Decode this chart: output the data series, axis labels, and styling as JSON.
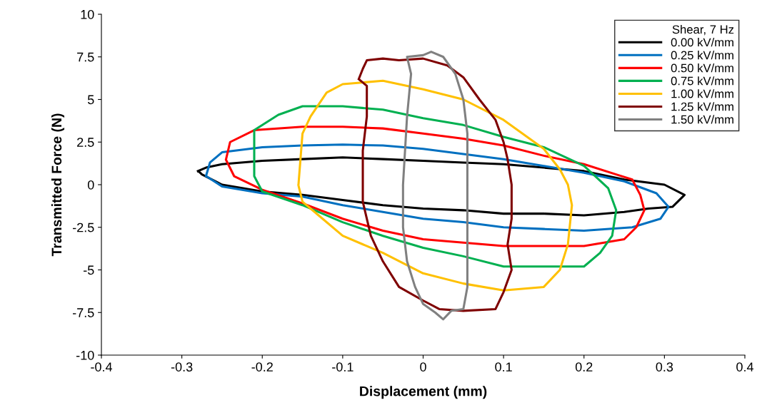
{
  "chart_data": {
    "type": "line",
    "xlabel": "Displacement (mm)",
    "ylabel": "Transmitted Force (N)",
    "legend_title": "Shear, 7 Hz",
    "legend": "top right",
    "grid": false,
    "marker": "none",
    "line_style": "solid",
    "xlim": [
      -0.4,
      0.4
    ],
    "xticks": [
      -0.4,
      -0.3,
      -0.2,
      -0.1,
      {
        "value": 0,
        "label": "0"
      },
      0.1,
      0.2,
      0.3,
      0.4
    ],
    "ylim": [
      -10,
      10
    ],
    "yticks": [
      -10,
      -7.5,
      -5,
      -2.5,
      0,
      2.5,
      5,
      7.5,
      10
    ],
    "series": [
      {
        "name": "0.00 kV/mm",
        "color": "#000000",
        "x": [
          -0.28,
          -0.27,
          -0.25,
          -0.2,
          -0.15,
          -0.1,
          -0.05,
          0,
          0.05,
          0.1,
          0.15,
          0.2,
          0.25,
          0.3,
          0.325,
          0.31,
          0.28,
          0.25,
          0.2,
          0.15,
          0.1,
          0.05,
          0,
          -0.05,
          -0.1,
          -0.15,
          -0.2,
          -0.25,
          -0.275,
          -0.279
        ],
        "values": [
          0.8,
          1.0,
          1.2,
          1.4,
          1.5,
          1.6,
          1.5,
          1.4,
          1.3,
          1.2,
          1.0,
          0.8,
          0.3,
          0,
          -0.6,
          -1.3,
          -1.4,
          -1.6,
          -1.8,
          -1.7,
          -1.7,
          -1.5,
          -1.4,
          -1.2,
          -0.9,
          -0.6,
          -0.4,
          0,
          0.6,
          0.78
        ]
      },
      {
        "name": "0.25 kV/mm",
        "color": "#0070c0",
        "x": [
          -0.27,
          -0.265,
          -0.25,
          -0.2,
          -0.15,
          -0.1,
          -0.05,
          0,
          0.05,
          0.1,
          0.15,
          0.2,
          0.25,
          0.29,
          0.305,
          0.295,
          0.26,
          0.2,
          0.15,
          0.1,
          0.05,
          0,
          -0.05,
          -0.1,
          -0.15,
          -0.2,
          -0.25,
          -0.269
        ],
        "values": [
          0.5,
          1.3,
          1.9,
          2.2,
          2.3,
          2.35,
          2.3,
          2.1,
          1.8,
          1.5,
          1.1,
          0.7,
          0.2,
          -0.5,
          -1.3,
          -2.0,
          -2.5,
          -2.7,
          -2.6,
          -2.5,
          -2.2,
          -2.0,
          -1.6,
          -1.2,
          -0.7,
          -0.5,
          -0.1,
          0.48
        ]
      },
      {
        "name": "0.50 kV/mm",
        "color": "#ff0000",
        "x": [
          -0.245,
          -0.24,
          -0.21,
          -0.15,
          -0.1,
          -0.05,
          0,
          0.05,
          0.1,
          0.15,
          0.2,
          0.24,
          0.26,
          0.27,
          0.275,
          0.265,
          0.25,
          0.2,
          0.15,
          0.1,
          0.05,
          0,
          -0.05,
          -0.1,
          -0.15,
          -0.2,
          -0.235,
          -0.245
        ],
        "values": [
          1.5,
          2.5,
          3.2,
          3.4,
          3.4,
          3.3,
          3.0,
          2.7,
          2.3,
          1.7,
          1.2,
          0.6,
          0.3,
          -0.6,
          -1.5,
          -2.5,
          -3.2,
          -3.6,
          -3.6,
          -3.6,
          -3.4,
          -3.2,
          -2.7,
          -2.0,
          -1.1,
          -0.3,
          0.5,
          1.45
        ]
      },
      {
        "name": "0.75 kV/mm",
        "color": "#00b050",
        "x": [
          -0.21,
          -0.21,
          -0.18,
          -0.15,
          -0.1,
          -0.05,
          0,
          0.05,
          0.1,
          0.15,
          0.2,
          0.23,
          0.24,
          0.235,
          0.22,
          0.2,
          0.15,
          0.1,
          0.05,
          0,
          -0.05,
          -0.1,
          -0.15,
          -0.2,
          -0.21,
          -0.21
        ],
        "values": [
          2.0,
          3.2,
          4.1,
          4.6,
          4.6,
          4.4,
          3.9,
          3.5,
          2.8,
          2.2,
          1.1,
          -0.2,
          -1.5,
          -3.0,
          -4.0,
          -4.8,
          -4.8,
          -4.8,
          -4.2,
          -3.7,
          -3.0,
          -2.2,
          -1.2,
          -0.4,
          0.5,
          1.95
        ]
      },
      {
        "name": "1.00 kV/mm",
        "color": "#ffc000",
        "x": [
          -0.155,
          -0.15,
          -0.14,
          -0.12,
          -0.1,
          -0.05,
          0,
          0.05,
          0.1,
          0.15,
          0.17,
          0.18,
          0.185,
          0.18,
          0.17,
          0.15,
          0.1,
          0.05,
          0,
          -0.05,
          -0.1,
          -0.13,
          -0.15,
          -0.155
        ],
        "values": [
          0,
          3.0,
          4.0,
          5.4,
          5.9,
          6.1,
          5.6,
          5.0,
          3.8,
          2.1,
          0.9,
          0,
          -1.2,
          -3.5,
          -5.0,
          -6.0,
          -6.2,
          -5.8,
          -5.2,
          -4.0,
          -3.0,
          -1.8,
          -1.0,
          -0.05
        ]
      },
      {
        "name": "1.25 kV/mm",
        "color": "#7f0000",
        "x": [
          -0.08,
          -0.075,
          -0.07,
          -0.05,
          -0.03,
          0,
          0.03,
          0.05,
          0.07,
          0.09,
          0.1,
          0.105,
          0.11,
          0.11,
          0.105,
          0.11,
          0.1,
          0.09,
          0.05,
          0.02,
          0,
          -0.03,
          -0.05,
          -0.065,
          -0.075,
          -0.075,
          -0.07,
          -0.07,
          -0.079
        ],
        "values": [
          6.2,
          6.8,
          7.3,
          7.4,
          7.3,
          7.4,
          7.0,
          6.3,
          5.0,
          3.8,
          2.5,
          1.5,
          0,
          -2.0,
          -3.5,
          -5.0,
          -6.3,
          -7.3,
          -7.4,
          -7.3,
          -6.8,
          -6.0,
          -4.5,
          -3.0,
          -1.0,
          2.0,
          4.0,
          5.8,
          6.15
        ]
      },
      {
        "name": "1.50 kV/mm",
        "color": "#808080",
        "x": [
          -0.025,
          -0.02,
          -0.015,
          -0.02,
          0,
          0.01,
          0.025,
          0.04,
          0.05,
          0.055,
          0.055,
          0.055,
          0.055,
          0.05,
          0.035,
          0.025,
          0.015,
          0,
          -0.01,
          -0.02,
          -0.025,
          -0.025
        ],
        "values": [
          0,
          4.0,
          6.5,
          7.5,
          7.6,
          7.8,
          7.5,
          6.5,
          5.0,
          3.0,
          0,
          -3.0,
          -6.0,
          -7.3,
          -7.4,
          -7.9,
          -7.5,
          -7.0,
          -6.0,
          -4.5,
          -2.5,
          -0.05
        ]
      }
    ]
  }
}
